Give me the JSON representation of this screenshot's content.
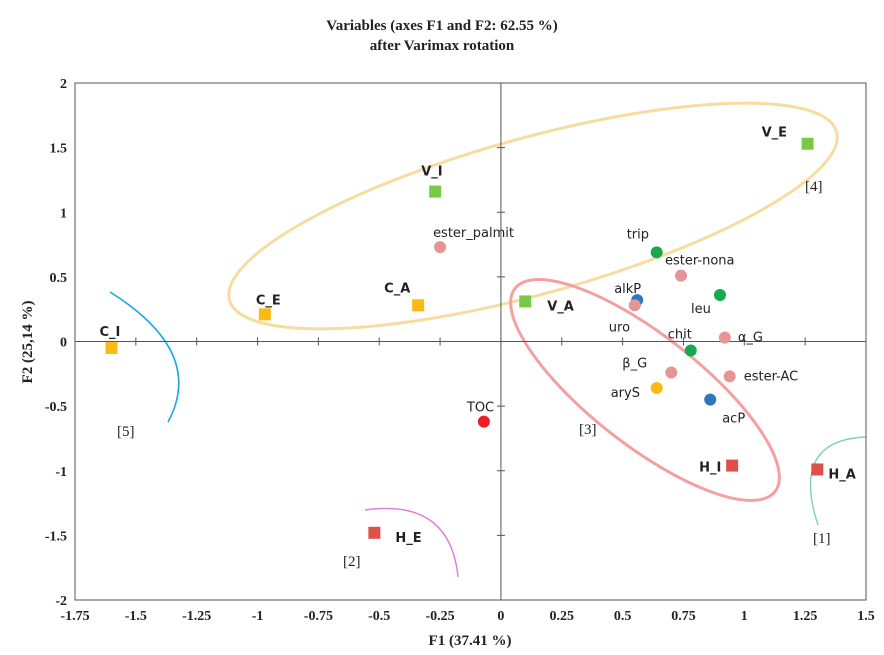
{
  "chart_data": {
    "type": "scatter",
    "title": "Variables (axes F1 and F2: 62.55 %)",
    "subtitle": "after Varimax rotation",
    "xlabel": "F1 (37.41 %)",
    "ylabel": "F2 (25,14 %)",
    "xlim": [
      -1.75,
      1.5
    ],
    "ylim": [
      -2,
      2
    ],
    "x_ticks": [
      "-1.75",
      "-1.5",
      "-1.25",
      "-1",
      "-0.75",
      "-0.5",
      "-0.25",
      "0",
      "0.25",
      "0.5",
      "0.75",
      "1",
      "1.25",
      "1.5"
    ],
    "y_ticks": [
      "2",
      "1.5",
      "1",
      "0.5",
      "0",
      "-0.5",
      "-1",
      "-1.5",
      "-2"
    ],
    "grid": false,
    "points": [
      {
        "label": "V_E",
        "x": 1.26,
        "y": 1.53,
        "shape": "square",
        "color": "#7ac943",
        "bold": true
      },
      {
        "label": "V_I",
        "x": -0.27,
        "y": 1.16,
        "shape": "square",
        "color": "#7ac943",
        "bold": true
      },
      {
        "label": "V_A",
        "x": 0.1,
        "y": 0.31,
        "shape": "square",
        "color": "#7ac943",
        "bold": true
      },
      {
        "label": "C_E",
        "x": -0.97,
        "y": 0.21,
        "shape": "square",
        "color": "#fbb917",
        "bold": true
      },
      {
        "label": "C_A",
        "x": -0.34,
        "y": 0.28,
        "shape": "square",
        "color": "#fbb917",
        "bold": true
      },
      {
        "label": "C_I",
        "x": -1.6,
        "y": -0.05,
        "shape": "square",
        "color": "#fbb917",
        "bold": true
      },
      {
        "label": "H_A",
        "x": 1.3,
        "y": -0.99,
        "shape": "square",
        "color": "#e0504b",
        "bold": true
      },
      {
        "label": "H_I",
        "x": 0.95,
        "y": -0.96,
        "shape": "square",
        "color": "#e0504b",
        "bold": true
      },
      {
        "label": "H_E",
        "x": -0.52,
        "y": -1.48,
        "shape": "square",
        "color": "#e0504b",
        "bold": true
      },
      {
        "label": "ester_palmit",
        "x": -0.25,
        "y": 0.73,
        "shape": "circle",
        "color": "#e59595",
        "bold": false
      },
      {
        "label": "trip",
        "x": 0.64,
        "y": 0.69,
        "shape": "circle",
        "color": "#18a94d",
        "bold": false
      },
      {
        "label": "ester-nona",
        "x": 0.74,
        "y": 0.51,
        "shape": "circle",
        "color": "#e59595",
        "bold": false
      },
      {
        "label": "alkP",
        "x": 0.56,
        "y": 0.32,
        "shape": "circle",
        "color": "#2e78c0",
        "bold": false
      },
      {
        "label": "uro",
        "x": 0.55,
        "y": 0.28,
        "shape": "circle",
        "color": "#e59595",
        "bold": false
      },
      {
        "label": "leu",
        "x": 0.9,
        "y": 0.36,
        "shape": "circle",
        "color": "#18a94d",
        "bold": false
      },
      {
        "label": "chit",
        "x": 0.78,
        "y": -0.07,
        "shape": "circle",
        "color": "#18a94d",
        "bold": false
      },
      {
        "label": "α_G",
        "x": 0.92,
        "y": 0.03,
        "shape": "circle",
        "color": "#e59595",
        "bold": false
      },
      {
        "label": "β_G",
        "x": 0.7,
        "y": -0.24,
        "shape": "circle",
        "color": "#e59595",
        "bold": false
      },
      {
        "label": "ester-AC",
        "x": 0.94,
        "y": -0.27,
        "shape": "circle",
        "color": "#e59595",
        "bold": false
      },
      {
        "label": "aryS",
        "x": 0.64,
        "y": -0.36,
        "shape": "circle",
        "color": "#fbb917",
        "bold": false
      },
      {
        "label": "acP",
        "x": 0.86,
        "y": -0.45,
        "shape": "circle",
        "color": "#2e78c0",
        "bold": false
      },
      {
        "label": "TOC",
        "x": -0.07,
        "y": -0.62,
        "shape": "circle",
        "color": "#ee1c24",
        "bold": false
      }
    ],
    "groups": [
      {
        "label": "[1]",
        "color": "#7dd3b0"
      },
      {
        "label": "[2]",
        "color": "#e07ad8"
      },
      {
        "label": "[3]",
        "color": "#f4a0a0"
      },
      {
        "label": "[4]",
        "color": "#f7dca0"
      },
      {
        "label": "[5]",
        "color": "#1ba8e0"
      }
    ]
  }
}
